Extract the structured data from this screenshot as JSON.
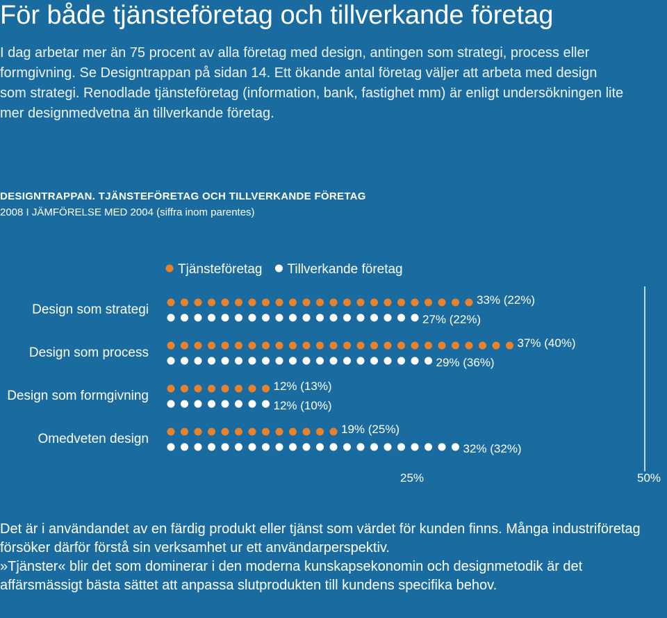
{
  "header": {
    "title": "För både tjänsteföretag och tillverkande företag",
    "intro": "I dag arbetar mer än 75 procent av alla företag med design, antingen som strategi, process eller formgivning. Se Designtrappan på sidan 14. Ett ökande antal företag väljer att arbeta med design som strategi. Renodlade tjänsteföretag (information, bank, fastighet mm) är enligt undersökningen lite mer designmedvetna än tillverkande företag."
  },
  "chart_data": {
    "type": "bar",
    "title": "DESIGNTRAPPAN. TJÄNSTEFÖRETAG OCH TILLVERKANDE FÖRETAG",
    "subtitle": "2008 I JÄMFÖRELSE MED 2004 (siffra inom parentes)",
    "legend_position": "top",
    "categories": [
      "Design som strategi",
      "Design som process",
      "Design som formgivning",
      "Omedveten design"
    ],
    "series": [
      {
        "name": "Tjänsteföretag",
        "color": "#e8822c",
        "values": [
          33,
          37,
          12,
          19
        ],
        "values_2004": [
          22,
          40,
          13,
          25
        ],
        "labels": [
          "33% (22%)",
          "37% (40%)",
          "12% (13%)",
          "19% (25%)"
        ]
      },
      {
        "name": "Tillverkande företag",
        "color": "#ffffff",
        "values": [
          27,
          29,
          12,
          32
        ],
        "values_2004": [
          22,
          36,
          10,
          32
        ],
        "labels": [
          "27% (22%)",
          "29% (36%)",
          "12% (10%)",
          "32% (32%)"
        ]
      }
    ],
    "x_ticks": [
      {
        "value": 25,
        "label": "25%"
      },
      {
        "value": 50,
        "label": "50%"
      }
    ],
    "xlim": [
      0,
      50
    ],
    "reference_lines": [
      50
    ]
  },
  "footer": {
    "paragraph_1": "Det är i användandet av en färdig produkt eller tjänst som värdet för kunden finns. Många industriföretag försöker därför förstå sin verksamhet ur ett användarperspektiv.",
    "paragraph_2": "»Tjänster« blir det som dominerar i den moderna kunskapsekonomin och designmetodik är det affärsmässigt bästa sättet att anpassa slutprodukten till kundens specifika behov."
  }
}
